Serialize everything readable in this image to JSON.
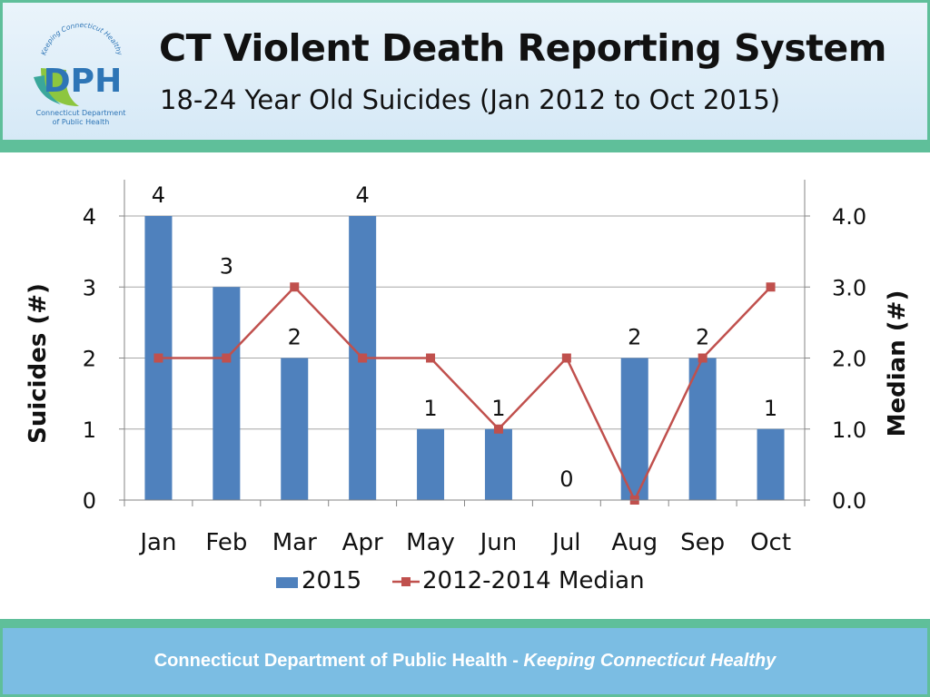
{
  "header": {
    "title": "CT Violent Death Reporting System",
    "subtitle": "18-24 Year Old Suicides (Jan 2012 to Oct 2015)",
    "logo": {
      "abbrev": "DPH",
      "arc_text": "Keeping Connecticut Healthy",
      "name_line1": "Connecticut Department",
      "name_line2": "of Public Health"
    }
  },
  "chart_data": {
    "type": "bar",
    "categories": [
      "Jan",
      "Feb",
      "Mar",
      "Apr",
      "May",
      "Jun",
      "Jul",
      "Aug",
      "Sep",
      "Oct"
    ],
    "series": [
      {
        "name": "2015",
        "type": "bar",
        "axis": "left",
        "values": [
          4,
          3,
          2,
          4,
          1,
          1,
          0,
          2,
          2,
          1
        ],
        "color": "#4f81bd"
      },
      {
        "name": "2012-2014 Median",
        "type": "line",
        "axis": "right",
        "values": [
          2,
          2,
          3,
          2,
          2,
          1,
          2,
          0,
          2,
          3
        ],
        "color": "#c0504d"
      }
    ],
    "ylabel": "Suicides (#)",
    "y2label": "Median (#)",
    "ylim": [
      0,
      4
    ],
    "y2lim": [
      0,
      4
    ],
    "yticks": [
      "0",
      "1",
      "2",
      "3",
      "4"
    ],
    "y2ticks": [
      "0.0",
      "1.0",
      "2.0",
      "3.0",
      "4.0"
    ],
    "grid": true,
    "legend": "bottom"
  },
  "footer": {
    "org": "Connecticut Department of Public Health",
    "separator": " - ",
    "tagline": "Keeping Connecticut Healthy"
  },
  "colors": {
    "bar": "#4f81bd",
    "line": "#c0504d",
    "accent_green": "#5fbf9a",
    "footer_bg": "#7bbde3"
  }
}
